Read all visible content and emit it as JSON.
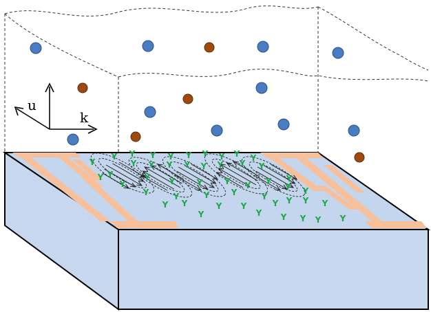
{
  "axes": {
    "u_label": "u",
    "k_label": "k"
  },
  "receptor_glyph": "Y",
  "colors": {
    "blue_particle": "#4a7cc2",
    "blue_particle_stroke": "#2c4f82",
    "brown_particle": "#a0490f",
    "brown_particle_stroke": "#5e2806",
    "chip_top": "#c3d6ee",
    "chip_side": "#c7d8ee",
    "electrode": "#f7c09a",
    "receptor": "#1ea84a",
    "outline": "#000000",
    "dashed": "#333333"
  }
}
